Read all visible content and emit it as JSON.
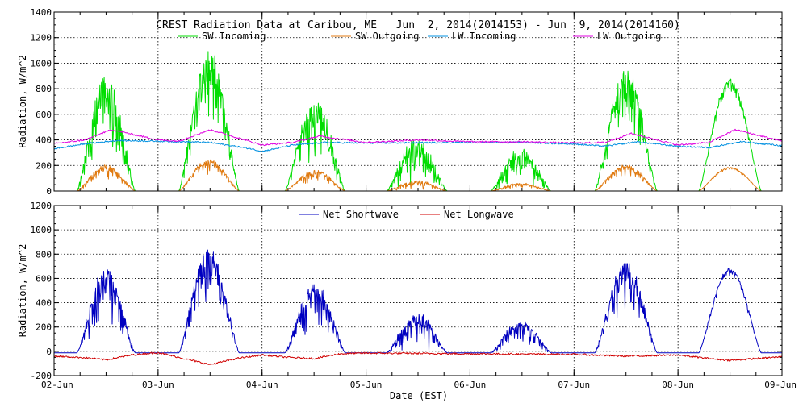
{
  "chart_data": [
    {
      "type": "line",
      "title": "CREST Radiation Data at Caribou, ME   Jun  2, 2014(2014153) - Jun  9, 2014(2014160)",
      "xlabel": "",
      "ylabel": "Radiation, W/m^2",
      "xlim": [
        0,
        7
      ],
      "ylim": [
        0,
        1400
      ],
      "yticks": [
        0,
        200,
        400,
        600,
        800,
        1000,
        1200,
        1400
      ],
      "grid": true,
      "legend_position": "top-center",
      "day_windows": [
        [
          0.22,
          0.78
        ],
        [
          0.2,
          0.78
        ],
        [
          0.22,
          0.8
        ],
        [
          0.2,
          0.78
        ],
        [
          0.2,
          0.78
        ],
        [
          0.2,
          0.8
        ],
        [
          0.2,
          0.8
        ]
      ],
      "series": [
        {
          "name": "SW Incoming",
          "color": "#00dd00",
          "kind": "sw_in",
          "peaks": [
            870,
            1070,
            700,
            390,
            320,
            920,
            880
          ],
          "noise": [
            0.45,
            0.35,
            0.45,
            0.6,
            0.55,
            0.35,
            0.08
          ]
        },
        {
          "name": "SW Outgoing",
          "color": "#e07a10",
          "kind": "sw_out",
          "peaks": [
            200,
            240,
            160,
            80,
            60,
            200,
            185
          ],
          "noise": [
            0.4,
            0.3,
            0.4,
            0.55,
            0.5,
            0.3,
            0.08
          ]
        },
        {
          "name": "LW Incoming",
          "color": "#0090e0",
          "kind": "lw_in",
          "x": [
            0,
            0.3,
            0.6,
            1.0,
            1.5,
            1.9,
            2.0,
            2.3,
            2.6,
            3.0,
            3.5,
            4.0,
            4.5,
            5.0,
            5.3,
            5.6,
            6.0,
            6.3,
            6.6,
            7.0
          ],
          "y": [
            330,
            370,
            395,
            390,
            380,
            330,
            310,
            360,
            380,
            375,
            378,
            380,
            380,
            368,
            350,
            385,
            350,
            340,
            385,
            355
          ]
        },
        {
          "name": "LW Outgoing",
          "color": "#e000e0",
          "kind": "lw_out",
          "x": [
            0,
            0.3,
            0.55,
            1.0,
            1.2,
            1.5,
            2.0,
            2.3,
            2.55,
            3.0,
            3.5,
            4.0,
            4.5,
            5.0,
            5.3,
            5.55,
            6.0,
            6.3,
            6.55,
            7.0
          ],
          "y": [
            370,
            400,
            480,
            400,
            390,
            480,
            360,
            380,
            430,
            380,
            400,
            385,
            385,
            375,
            380,
            450,
            360,
            380,
            480,
            390
          ]
        }
      ]
    },
    {
      "type": "line",
      "title": "",
      "xlabel": "Date (EST)",
      "ylabel": "Radiation, W/m^2",
      "xlim": [
        0,
        7
      ],
      "ylim": [
        -200,
        1200
      ],
      "yticks": [
        -200,
        0,
        200,
        400,
        600,
        800,
        1000,
        1200
      ],
      "categories": [
        "02-Jun",
        "03-Jun",
        "04-Jun",
        "05-Jun",
        "06-Jun",
        "07-Jun",
        "08-Jun",
        "09-Jun"
      ],
      "grid": true,
      "legend_position": "top-center",
      "series": [
        {
          "name": "Net Shortwave",
          "color": "#0000c0",
          "kind": "net_sw",
          "peaks": [
            670,
            830,
            550,
            310,
            250,
            720,
            700
          ],
          "noise": [
            0.45,
            0.35,
            0.45,
            0.6,
            0.55,
            0.35,
            0.08
          ]
        },
        {
          "name": "Net Longwave",
          "color": "#d00000",
          "kind": "net_lw",
          "x": [
            0,
            0.25,
            0.5,
            0.75,
            1.0,
            1.5,
            1.75,
            2.0,
            2.25,
            2.5,
            2.75,
            3.0,
            4.0,
            5.0,
            5.5,
            6.0,
            6.25,
            6.5,
            7.0
          ],
          "y": [
            -40,
            -50,
            -70,
            -30,
            -10,
            -110,
            -60,
            -30,
            -50,
            -60,
            -20,
            -15,
            -20,
            -25,
            -40,
            -30,
            -55,
            -75,
            -45
          ]
        }
      ]
    }
  ]
}
